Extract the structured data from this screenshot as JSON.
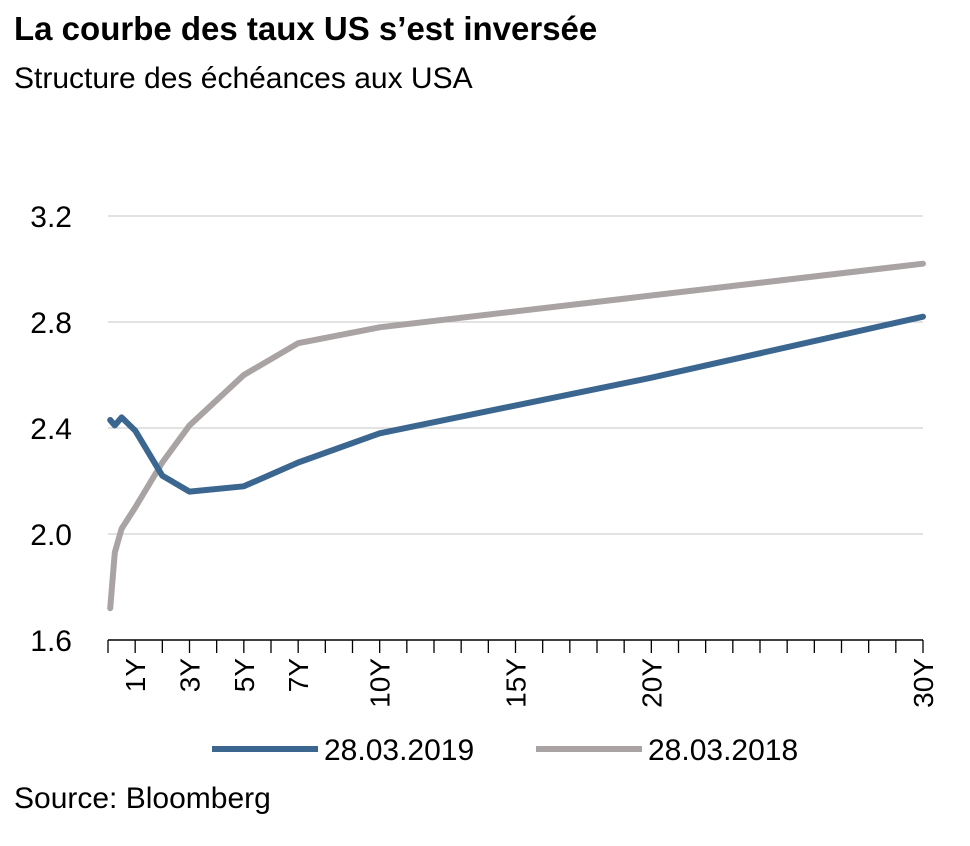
{
  "header": {
    "title": "La courbe des taux US s’est inversée",
    "subtitle": "Structure des échéances aux USA"
  },
  "footer": {
    "source": "Source: Bloomberg"
  },
  "chart_data": {
    "type": "line",
    "title": "La courbe des taux US s’est inversée",
    "subtitle": "Structure des échéances aux USA",
    "xlabel": "",
    "ylabel": "",
    "xlim": [
      0,
      30
    ],
    "ylim": [
      1.6,
      3.2
    ],
    "yticks": [
      1.6,
      2.0,
      2.4,
      2.8,
      3.2
    ],
    "ytick_labels": [
      "1.6",
      "2.0",
      "2.4",
      "2.8",
      "3.2"
    ],
    "xticks": [
      1,
      3,
      5,
      7,
      10,
      15,
      20,
      30
    ],
    "xtick_labels": [
      "1Y",
      "3Y",
      "5Y",
      "7Y",
      "10Y",
      "15Y",
      "20Y",
      "30Y"
    ],
    "grid": true,
    "legend_position": "bottom",
    "series": [
      {
        "name": "28.03.2019",
        "color": "#3a6690",
        "x": [
          0.08,
          0.25,
          0.5,
          1,
          2,
          3,
          5,
          7,
          10,
          20,
          30
        ],
        "y": [
          2.43,
          2.41,
          2.44,
          2.39,
          2.22,
          2.16,
          2.18,
          2.27,
          2.38,
          2.59,
          2.82
        ]
      },
      {
        "name": "28.03.2018",
        "color": "#aaa3a3",
        "x": [
          0.08,
          0.25,
          0.5,
          1,
          2,
          3,
          5,
          7,
          10,
          30
        ],
        "y": [
          1.72,
          1.93,
          2.02,
          2.1,
          2.27,
          2.41,
          2.6,
          2.72,
          2.78,
          3.02
        ]
      }
    ]
  }
}
